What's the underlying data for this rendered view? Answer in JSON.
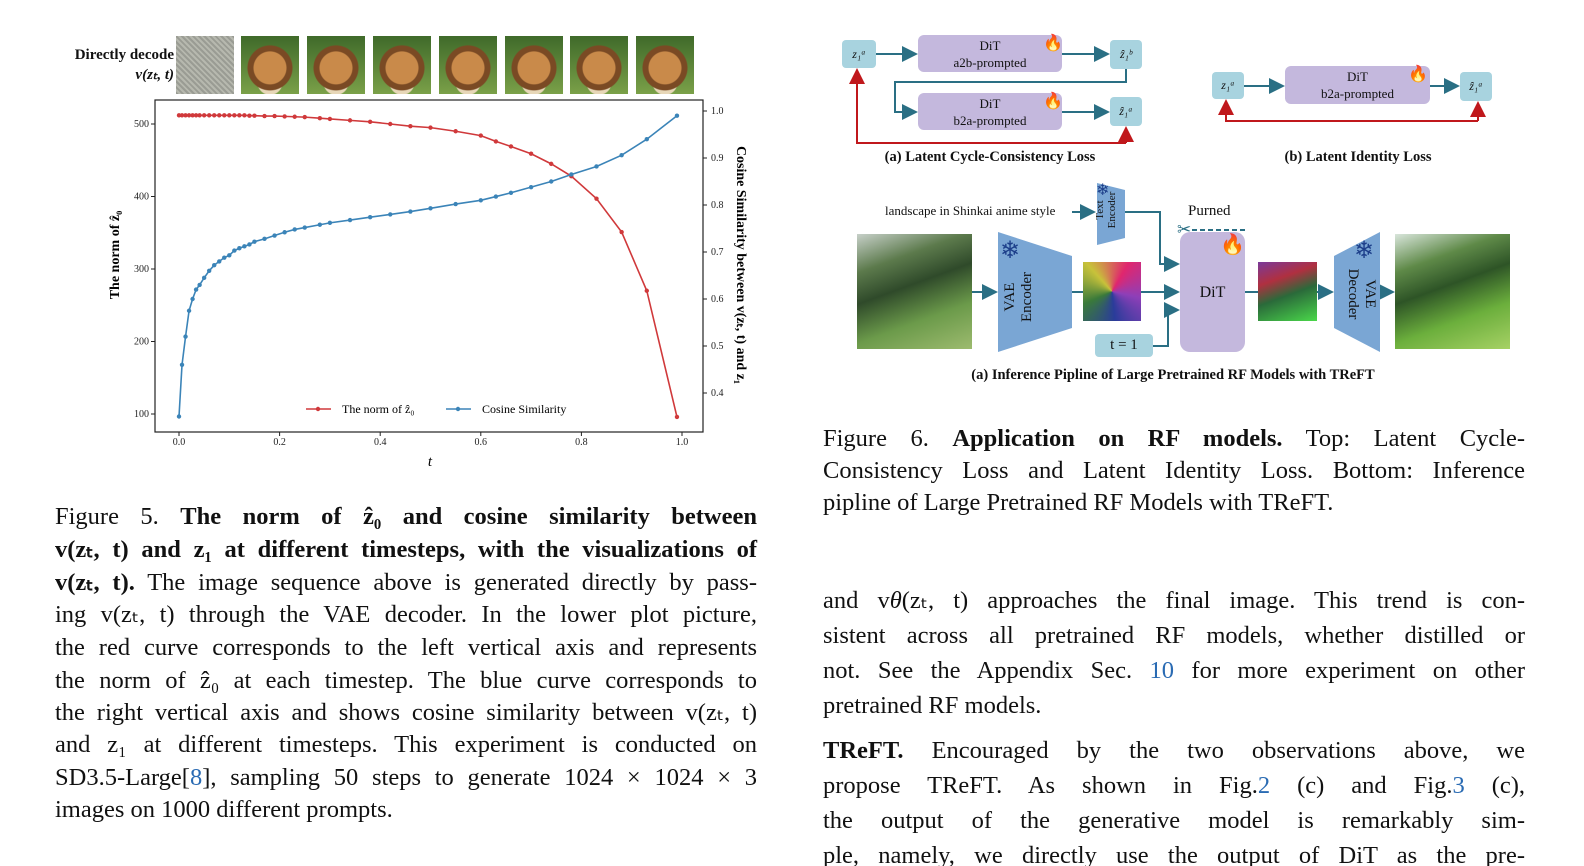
{
  "figure5": {
    "strip_label_line1": "Directly decode",
    "strip_label_line2": "v(zₜ, t)",
    "caption_lines": [
      [
        {
          "t": "Figure 5.  ",
          "s": ""
        },
        {
          "t": "The norm of ẑ₀ and cosine similarity between",
          "s": "b"
        }
      ],
      [
        {
          "t": "v(zₜ, t) and z₁ at different timesteps, with the visualizations of",
          "s": "b"
        }
      ],
      [
        {
          "t": "v(zₜ, t).",
          "s": "b"
        },
        {
          "t": " The image sequence above is generated directly by pass-",
          "s": ""
        }
      ],
      [
        {
          "t": "ing v(zₜ, t) through the VAE decoder.  In the lower plot picture,",
          "s": ""
        }
      ],
      [
        {
          "t": "the red curve corresponds to the left vertical axis and represents",
          "s": ""
        }
      ],
      [
        {
          "t": "the norm of ẑ₀ at each timestep.  The blue curve corresponds to",
          "s": ""
        }
      ],
      [
        {
          "t": "the right vertical axis and shows cosine similarity between v(zₜ, t)",
          "s": ""
        }
      ],
      [
        {
          "t": "and z₁ at different timesteps.  This experiment is conducted on",
          "s": ""
        }
      ],
      [
        {
          "t": "SD3.5-Large[",
          "s": ""
        },
        {
          "t": "8",
          "s": "link"
        },
        {
          "t": "], sampling 50 steps to generate 1024 × 1024 × 3",
          "s": ""
        }
      ],
      [
        {
          "t": "images on 1000 different prompts.",
          "s": ""
        }
      ]
    ]
  },
  "chart_data": {
    "type": "line",
    "xlabel": "t",
    "ylabel": "The norm of ẑ₀",
    "ylabel_right": "Cosine Similarity between v(zₜ, t) and z₁",
    "xlim": [
      -0.05,
      1.04
    ],
    "ylim": [
      75,
      535
    ],
    "ylim_right": [
      0.32,
      1.02
    ],
    "xticks": [
      "0.0",
      "0.2",
      "0.4",
      "0.6",
      "0.8",
      "1.0"
    ],
    "yticks": [
      "100",
      "200",
      "300",
      "400",
      "500"
    ],
    "yticks_right": [
      "0.4",
      "0.5",
      "0.6",
      "0.7",
      "0.8",
      "0.9",
      "1.0"
    ],
    "grid": false,
    "legend_position": "bottom-center",
    "x": [
      0,
      0.006,
      0.013,
      0.02,
      0.027,
      0.034,
      0.041,
      0.05,
      0.06,
      0.07,
      0.08,
      0.09,
      0.1,
      0.11,
      0.12,
      0.13,
      0.14,
      0.15,
      0.17,
      0.19,
      0.21,
      0.23,
      0.25,
      0.28,
      0.3,
      0.34,
      0.38,
      0.42,
      0.46,
      0.5,
      0.55,
      0.6,
      0.63,
      0.66,
      0.7,
      0.74,
      0.78,
      0.83,
      0.88,
      0.93,
      0.99
    ],
    "series": [
      {
        "name": "The norm of ẑ₀",
        "axis": "left",
        "color": "#d0393b",
        "values": [
          512,
          512,
          512,
          512,
          512,
          512,
          512,
          512,
          512,
          512,
          512,
          512,
          512,
          512,
          512,
          512,
          511.5,
          511.5,
          511,
          511,
          510.5,
          510,
          509.5,
          508,
          507,
          505,
          503,
          500,
          497,
          495,
          490,
          484,
          476,
          469,
          459,
          445,
          428,
          397,
          351,
          270,
          96
        ]
      },
      {
        "name": "Cosine Similarity",
        "axis": "right",
        "color": "#3b84b8",
        "values": [
          0.35,
          0.46,
          0.52,
          0.575,
          0.6,
          0.62,
          0.63,
          0.645,
          0.66,
          0.672,
          0.68,
          0.688,
          0.693,
          0.703,
          0.708,
          0.712,
          0.716,
          0.722,
          0.728,
          0.735,
          0.742,
          0.748,
          0.752,
          0.758,
          0.762,
          0.768,
          0.774,
          0.78,
          0.786,
          0.793,
          0.802,
          0.81,
          0.818,
          0.826,
          0.838,
          0.85,
          0.865,
          0.882,
          0.906,
          0.94,
          0.99
        ]
      }
    ]
  },
  "figure6": {
    "cycle": {
      "z_in": "z₁ᵃ",
      "dit1_line1": "DiT",
      "dit1_line2": "a2b-prompted",
      "z_mid": "ẑ₁ᵇ",
      "dit2_line1": "DiT",
      "dit2_line2": "b2a-prompted",
      "z_out": "ẑ₁ᵃ",
      "caption": "(a) Latent Cycle-Consistency Loss"
    },
    "identity": {
      "z_in": "z₁ᵃ",
      "dit_line1": "DiT",
      "dit_line2": "b2a-prompted",
      "z_out": "ẑ₁ᵃ",
      "caption": "(b) Latent Identity Loss"
    },
    "pipeline": {
      "prompt": "landscape in Shinkai anime style",
      "text_encoder_line1": "Text",
      "text_encoder_line2": "Encoder",
      "vae_encoder_line1": "VAE",
      "vae_encoder_line2": "Encoder",
      "pruned_label": "Purned",
      "dit": "DiT",
      "timestep": "t = 1",
      "vae_decoder_line1": "VAE",
      "vae_decoder_line2": "Decoder",
      "caption": "(a) Inference Pipline of Large Pretrained RF Models with TReFT"
    },
    "caption_lines": [
      [
        {
          "t": "Figure 6.   ",
          "s": ""
        },
        {
          "t": "Application on RF models.",
          "s": "b"
        },
        {
          "t": "   Top:  Latent Cycle-",
          "s": ""
        }
      ],
      [
        {
          "t": "Consistency Loss and Latent Identity Loss.  Bottom: Inference",
          "s": ""
        }
      ],
      [
        {
          "t": "pipline of Large Pretrained RF Models with TReFT.",
          "s": ""
        }
      ]
    ]
  },
  "body_lines": [
    [
      {
        "t": "and v",
        "s": ""
      },
      {
        "t": "θ",
        "s": "i"
      },
      {
        "t": "(zₜ, t) approaches the final image. This trend is con-",
        "s": ""
      }
    ],
    [
      {
        "t": "sistent across all pretrained RF models, whether distilled or",
        "s": ""
      }
    ],
    [
      {
        "t": "not. See the Appendix Sec. ",
        "s": ""
      },
      {
        "t": "10",
        "s": "link"
      },
      {
        "t": " for more experiment on other",
        "s": ""
      }
    ],
    [
      {
        "t": "pretrained RF models.",
        "s": ""
      }
    ],
    [
      {
        "t": "TReFT.",
        "s": "b"
      },
      {
        "t": " Encouraged by the two observations above, we",
        "s": ""
      }
    ],
    [
      {
        "t": "propose TReFT. As shown in Fig.",
        "s": ""
      },
      {
        "t": "2",
        "s": "link"
      },
      {
        "t": " (c) and Fig.",
        "s": ""
      },
      {
        "t": "3",
        "s": "link"
      },
      {
        "t": " (c),",
        "s": ""
      }
    ],
    [
      {
        "t": "the output of the generative model is remarkably sim-",
        "s": ""
      }
    ],
    [
      {
        "t": "ple, namely, we directly use the output of DiT as the pre-",
        "s": ""
      }
    ]
  ]
}
